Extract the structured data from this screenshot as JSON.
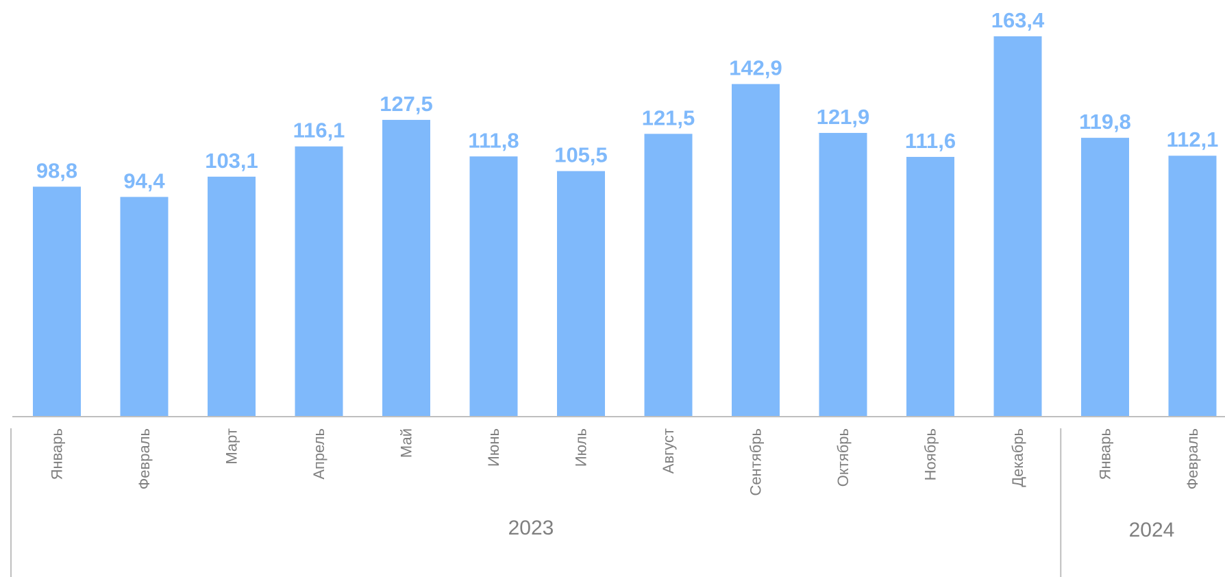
{
  "chart_data": {
    "type": "bar",
    "categories": [
      "Январь",
      "Февраль",
      "Март",
      "Апрель",
      "Май",
      "Июнь",
      "Июль",
      "Август",
      "Сентябрь",
      "Октябрь",
      "Ноябрь",
      "Декабрь",
      "Январь",
      "Февраль"
    ],
    "values": [
      98.8,
      94.4,
      103.1,
      116.1,
      127.5,
      111.8,
      105.5,
      121.5,
      142.9,
      121.9,
      111.6,
      163.4,
      119.8,
      112.1
    ],
    "value_labels": [
      "98,8",
      "94,4",
      "103,1",
      "116,1",
      "127,5",
      "111,8",
      "105,5",
      "121,5",
      "142,9",
      "121,9",
      "111,6",
      "163,4",
      "119,8",
      "112,1"
    ],
    "groups": [
      {
        "label": "2023",
        "count": 12
      },
      {
        "label": "2024",
        "count": 2
      }
    ],
    "title": "",
    "xlabel": "",
    "ylabel": "",
    "ylim": [
      0,
      163.4
    ],
    "grid": false,
    "legend": "none"
  },
  "colors": {
    "bar": "#7fb9fb",
    "value_label": "#7fb9fb",
    "axis": "#bfbfbf",
    "text": "#7f7f7f"
  }
}
